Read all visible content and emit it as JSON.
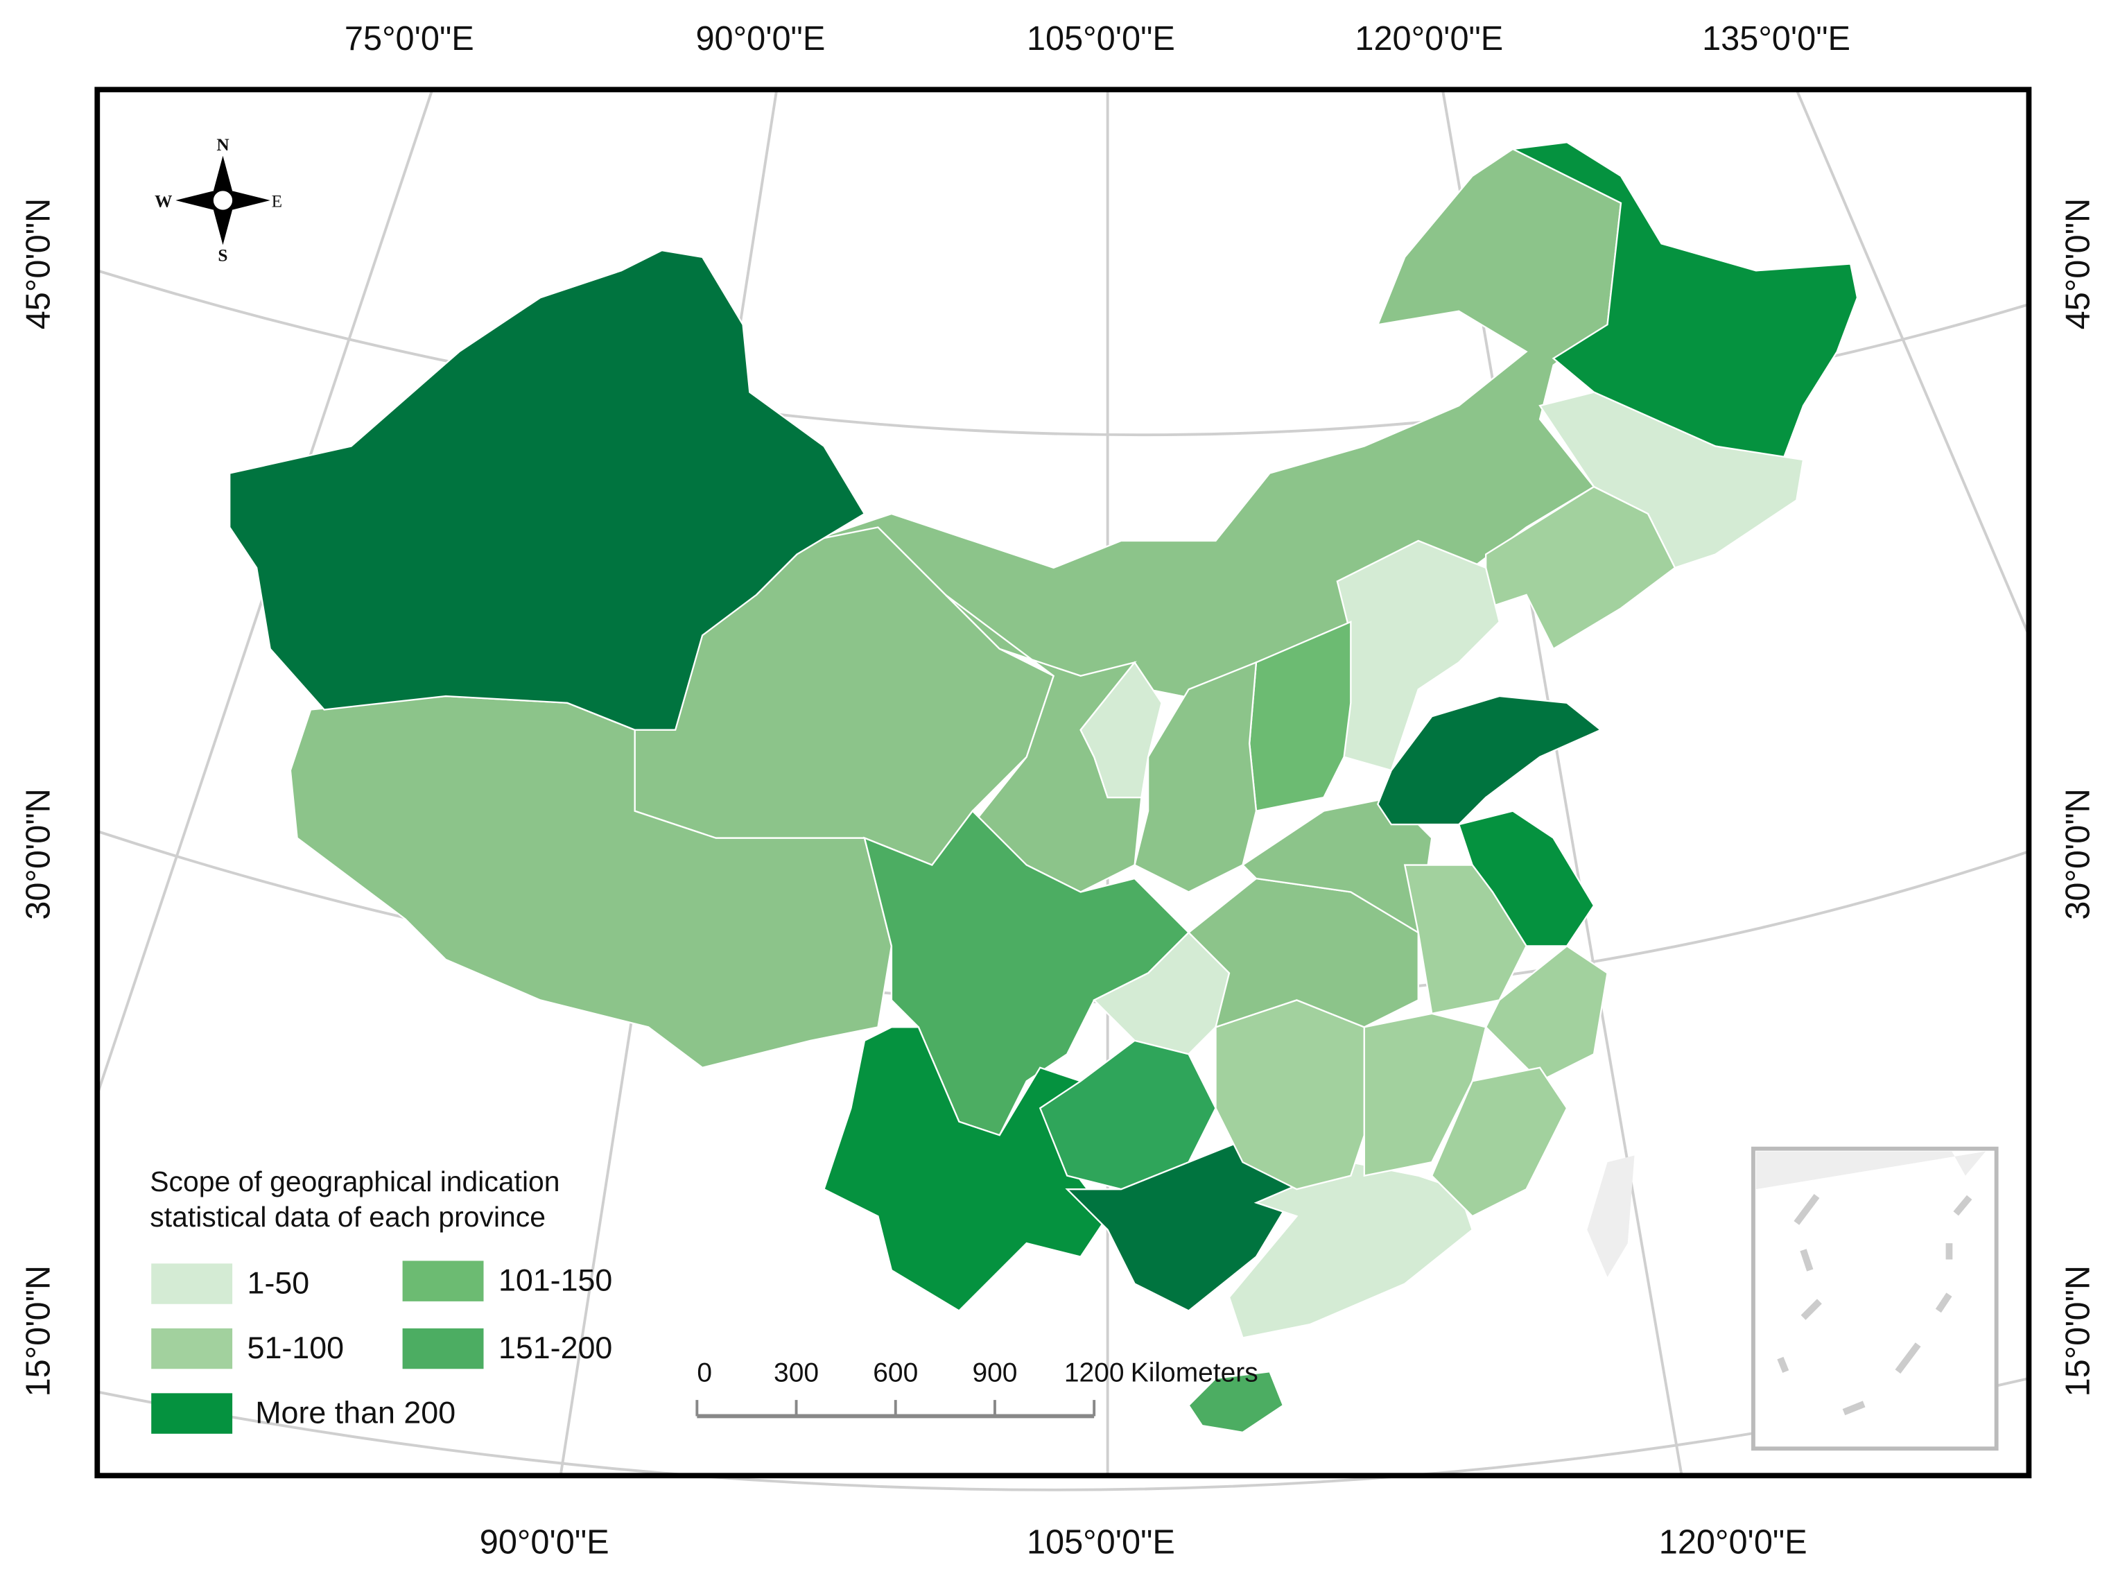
{
  "graticule": {
    "top": [
      "75°0'0\"E",
      "90°0'0\"E",
      "105°0'0\"E",
      "120°0'0\"E",
      "135°0'0\"E"
    ],
    "bottom": [
      "90°0'0\"E",
      "105°0'0\"E",
      "120°0'0\"E"
    ],
    "left": [
      "45°0'0\"N",
      "30°0'0\"N",
      "15°0'0\"N"
    ],
    "right": [
      "45°0'0\"N",
      "30°0'0\"N",
      "15°0'0\"N"
    ]
  },
  "compass": {
    "n": "N",
    "s": "S",
    "e": "E",
    "w": "W"
  },
  "legend": {
    "title": [
      "Scope of geographical indication",
      "statistical data of each province"
    ],
    "items": [
      {
        "label": "1-50",
        "color": "#d4ebd4"
      },
      {
        "label": "51-100",
        "color": "#a2d19e"
      },
      {
        "label": "More than 200",
        "color": "#05923f"
      },
      {
        "label": "101-150",
        "color": "#6cbb72"
      },
      {
        "label": "151-200",
        "color": "#4cad62"
      }
    ]
  },
  "scale_bar": {
    "ticks": [
      0,
      300,
      600,
      900,
      1200
    ],
    "unit": "Kilometers"
  }
}
